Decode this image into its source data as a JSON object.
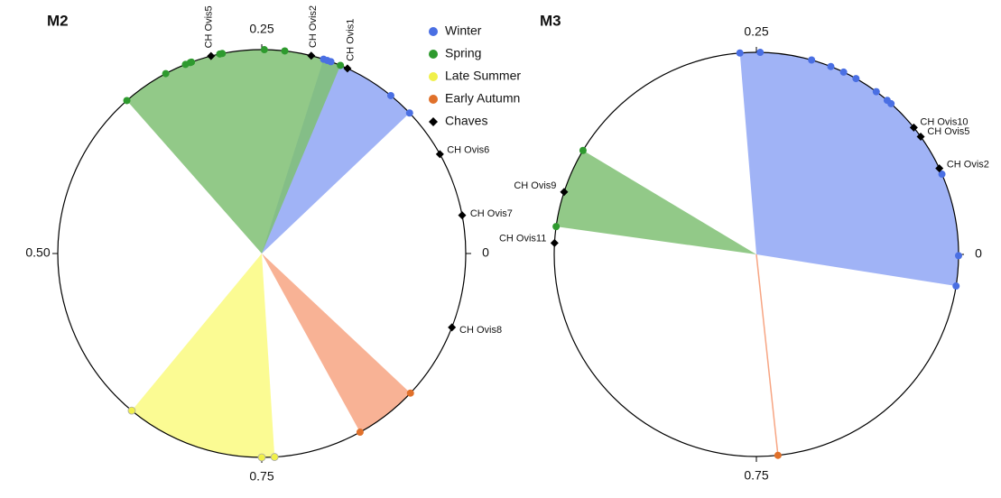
{
  "chart_data": [
    {
      "type": "circular",
      "title": "M2",
      "legend": "top-right",
      "ticks": [
        0,
        0.25,
        {
          "value": 0.5,
          "label": "0.50"
        },
        0.75
      ],
      "series": [
        {
          "name": "Winter",
          "color": "#4a6fe3",
          "wedge_color": "#8fa6f5",
          "values": [
            0.201,
            0.198,
            0.195,
            0.141,
            0.121
          ],
          "range": [
            0.121,
            0.201
          ]
        },
        {
          "name": "Spring",
          "color": "#2e9a2e",
          "wedge_color": "#7fc073",
          "values": [
            0.187,
            0.232,
            0.248,
            0.281,
            0.283,
            0.306,
            0.307,
            0.311,
            0.328,
            0.365
          ],
          "range": [
            0.187,
            0.365
          ]
        },
        {
          "name": "Late Summer",
          "color": "#f0f04a",
          "wedge_color": "#fafa80",
          "values": [
            0.64,
            0.75,
            0.76
          ],
          "range": [
            0.64,
            0.76
          ]
        },
        {
          "name": "Early Autumn",
          "color": "#e0702a",
          "wedge_color": "#f7a583",
          "values": [
            0.83,
            0.88
          ],
          "range": [
            0.83,
            0.88
          ]
        },
        {
          "name": "Chaves",
          "color": "#000000",
          "marker": "diamond",
          "values": [
            0.29,
            0.211,
            0.181,
            0.081,
            0.03,
            0.941
          ],
          "labels": [
            "CH Ovis5",
            "CH Ovis2",
            "CH Ovis1",
            "CH Ovis6",
            "CH Ovis7",
            "CH Ovis8"
          ]
        }
      ]
    },
    {
      "type": "circular",
      "title": "M3",
      "ticks": [
        0,
        0.25,
        0.75
      ],
      "series": [
        {
          "color": "#4a6fe3",
          "wedge_color": "#8fa6f5",
          "values": [
            0.263,
            0.247,
            0.206,
            0.19,
            0.179,
            0.168,
            0.149,
            0.138,
            0.134,
            0.065,
            0.999,
            0.975
          ],
          "range": [
            0.975,
            0.263
          ]
        },
        {
          "color": "#2e9a2e",
          "wedge_color": "#7fc073",
          "values": [
            0.414,
            0.478
          ],
          "range": [
            0.414,
            0.478
          ]
        },
        {
          "color": "#e0702a",
          "wedge_color": "#f7a583",
          "values": [
            0.767
          ],
          "range": [
            0.767,
            0.767
          ]
        },
        {
          "color": "#000000",
          "marker": "diamond",
          "values": [
            0.108,
            0.099,
            0.07,
            0.45,
            0.491
          ],
          "labels": [
            "CH Ovis10",
            "CH Ovis5",
            "CH Ovis2",
            "CH Ovis9",
            "CH Ovis11"
          ]
        }
      ]
    }
  ]
}
